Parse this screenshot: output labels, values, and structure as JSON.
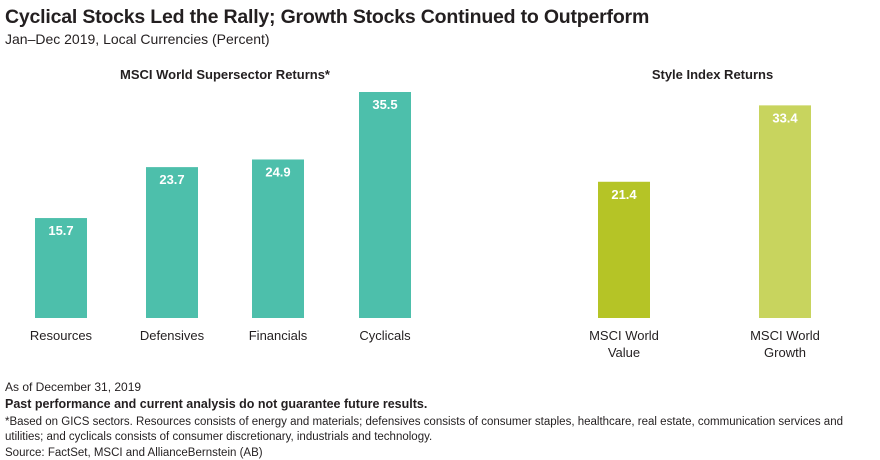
{
  "title": "Cyclical Stocks Led the Rally; Growth Stocks Continued to Outperform",
  "subtitle": "Jan–Dec 2019, Local Currencies (Percent)",
  "footer": {
    "as_of": "As of December 31, 2019",
    "disclaimer": "Past performance and current analysis do not guarantee future results.",
    "note": "*Based on GICS sectors. Resources consists of energy and materials; defensives consists of consumer staples, healthcare, real estate, communication services and utilities; and cyclicals consists of consumer discretionary, industrials and technology.",
    "source": "Source: FactSet, MSCI and AllianceBernstein (AB)"
  },
  "chart_data": [
    {
      "type": "bar",
      "title": "MSCI World Supersector Returns*",
      "categories": [
        "Resources",
        "Defensives",
        "Financials",
        "Cyclicals"
      ],
      "values": [
        15.7,
        23.7,
        24.9,
        35.5
      ],
      "color": "#4dbfab",
      "ylim": [
        0,
        35.5
      ],
      "grid": false
    },
    {
      "type": "bar",
      "title": "Style Index Returns",
      "categories": [
        [
          "MSCI World",
          "Value"
        ],
        [
          "MSCI World",
          "Growth"
        ]
      ],
      "values": [
        21.4,
        33.4
      ],
      "colors": [
        "#b5c426",
        "#c8d45e"
      ],
      "ylim": [
        0,
        35.5
      ],
      "grid": false
    }
  ]
}
